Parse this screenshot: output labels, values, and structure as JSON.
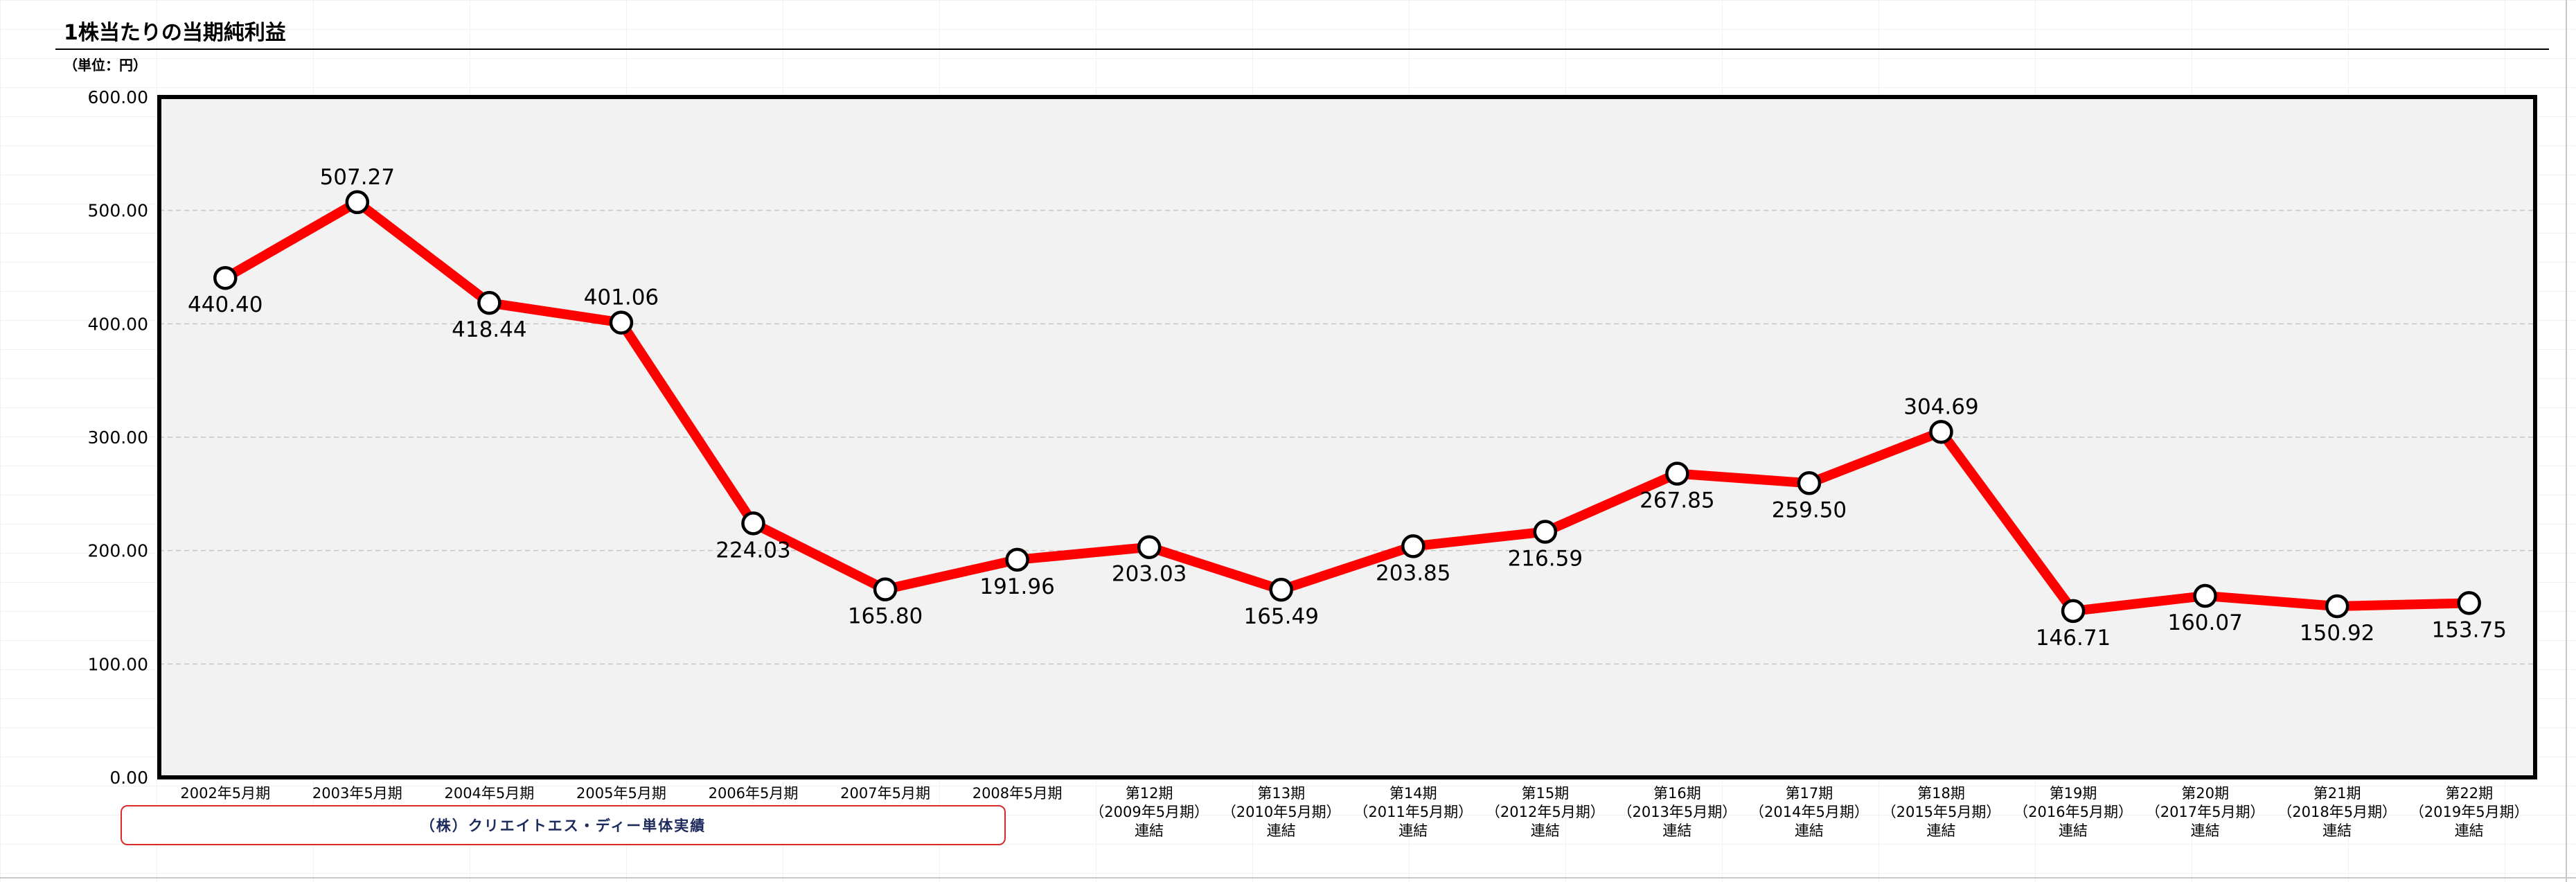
{
  "title": "1株当たりの当期純利益",
  "unit": "（単位：円）",
  "note": "（株）クリエイトエス・ディー単体実績",
  "colors": {
    "line": "#ff0000",
    "marker_fill": "#ffffff",
    "plot_bg": "#f2f2f2"
  },
  "chart_data": {
    "type": "line",
    "title": "1株当たりの当期純利益",
    "ylabel": "（単位：円）",
    "xlabel": "",
    "ylim": [
      0,
      600
    ],
    "yticks": [
      "0.00",
      "100.00",
      "200.00",
      "300.00",
      "400.00",
      "500.00",
      "600.00"
    ],
    "grid": true,
    "categories": [
      [
        "2002年5月期"
      ],
      [
        "2003年5月期"
      ],
      [
        "2004年5月期"
      ],
      [
        "2005年5月期"
      ],
      [
        "2006年5月期"
      ],
      [
        "2007年5月期"
      ],
      [
        "2008年5月期"
      ],
      [
        "第12期",
        "（2009年5月期）",
        "連結"
      ],
      [
        "第13期",
        "（2010年5月期）",
        "連結"
      ],
      [
        "第14期",
        "（2011年5月期）",
        "連結"
      ],
      [
        "第15期",
        "（2012年5月期）",
        "連結"
      ],
      [
        "第16期",
        "（2013年5月期）",
        "連結"
      ],
      [
        "第17期",
        "（2014年5月期）",
        "連結"
      ],
      [
        "第18期",
        "（2015年5月期）",
        "連結"
      ],
      [
        "第19期",
        "（2016年5月期）",
        "連結"
      ],
      [
        "第20期",
        "（2017年5月期）",
        "連結"
      ],
      [
        "第21期",
        "（2018年5月期）",
        "連結"
      ],
      [
        "第22期",
        "（2019年5月期）",
        "連結"
      ]
    ],
    "series": [
      {
        "values": [
          440.4,
          507.27,
          418.44,
          401.06,
          224.03,
          165.8,
          191.96,
          203.03,
          165.49,
          203.85,
          216.59,
          267.85,
          259.5,
          304.69,
          146.71,
          160.07,
          150.92,
          153.75
        ],
        "labels": [
          "440.40",
          "507.27",
          "418.44",
          "401.06",
          "224.03",
          "165.80",
          "191.96",
          "203.03",
          "165.49",
          "203.85",
          "216.59",
          "267.85",
          "259.50",
          "304.69",
          "146.71",
          "160.07",
          "150.92",
          "153.75"
        ]
      }
    ]
  }
}
